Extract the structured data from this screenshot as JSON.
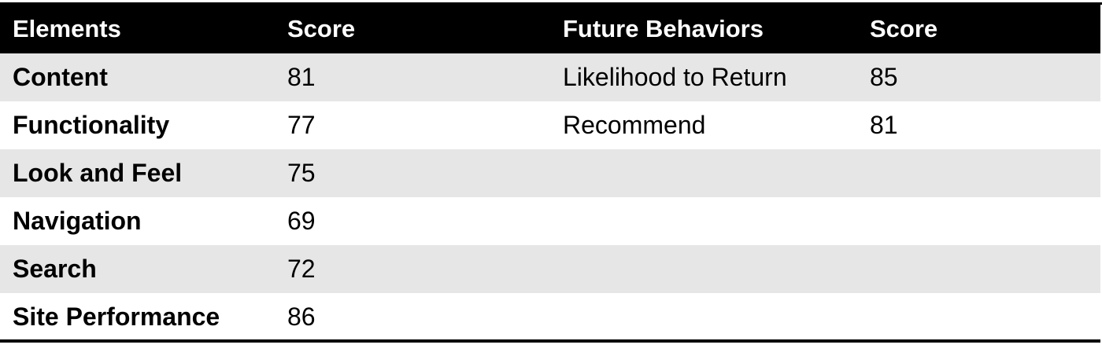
{
  "chart_data": {
    "type": "table",
    "columns": [
      "Elements",
      "Score",
      "Future Behaviors",
      "Score"
    ],
    "rows": [
      [
        "Content",
        "81",
        "Likelihood to Return",
        "85"
      ],
      [
        "Functionality",
        "77",
        "Recommend",
        "81"
      ],
      [
        "Look and Feel",
        "75",
        "",
        ""
      ],
      [
        "Navigation",
        "69",
        "",
        ""
      ],
      [
        "Search",
        "72",
        "",
        ""
      ],
      [
        "Site Performance",
        "86",
        "",
        ""
      ]
    ]
  },
  "colors": {
    "header_background": "#000000",
    "header_text": "#ffffff",
    "shaded_row": "#e6e6e6",
    "plain_row": "#ffffff",
    "text": "#000000"
  }
}
